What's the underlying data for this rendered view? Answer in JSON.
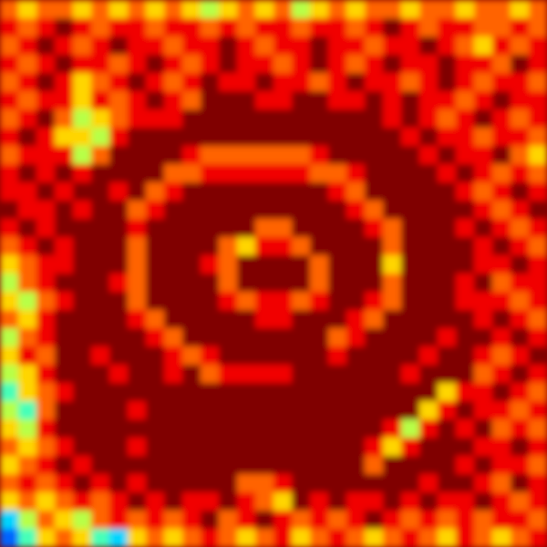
{
  "chart_data": {
    "type": "heatmap",
    "tick_labels": false,
    "zlim": [
      0,
      9
    ],
    "cells": [
      [
        7,
        6,
        7,
        7,
        6,
        7,
        6,
        7,
        6,
        7,
        6,
        5,
        6,
        7,
        6,
        7,
        5,
        6,
        7,
        6,
        7,
        7,
        6,
        7,
        7,
        6,
        7,
        7,
        6,
        7
      ],
      [
        8,
        7,
        8,
        9,
        8,
        7,
        8,
        8,
        7,
        8,
        8,
        7,
        8,
        7,
        8,
        8,
        7,
        8,
        8,
        7,
        8,
        9,
        8,
        7,
        8,
        8,
        7,
        7,
        8,
        7
      ],
      [
        7,
        8,
        9,
        8,
        7,
        8,
        9,
        8,
        8,
        7,
        8,
        8,
        9,
        8,
        7,
        8,
        8,
        9,
        8,
        8,
        7,
        8,
        8,
        9,
        8,
        7,
        6,
        8,
        7,
        8
      ],
      [
        8,
        7,
        8,
        9,
        8,
        8,
        7,
        8,
        9,
        8,
        7,
        8,
        9,
        8,
        8,
        7,
        8,
        9,
        8,
        7,
        8,
        9,
        8,
        8,
        9,
        8,
        8,
        7,
        9,
        8
      ],
      [
        7,
        8,
        9,
        8,
        6,
        7,
        8,
        9,
        8,
        7,
        8,
        9,
        8,
        8,
        9,
        8,
        8,
        7,
        8,
        9,
        8,
        8,
        7,
        8,
        9,
        8,
        7,
        8,
        8,
        7
      ],
      [
        8,
        7,
        8,
        8,
        6,
        8,
        7,
        8,
        9,
        8,
        7,
        9,
        9,
        9,
        8,
        8,
        9,
        9,
        8,
        8,
        9,
        8,
        9,
        8,
        8,
        7,
        8,
        9,
        8,
        8
      ],
      [
        7,
        8,
        9,
        7,
        5,
        6,
        7,
        8,
        8,
        8,
        9,
        9,
        9,
        9,
        9,
        9,
        9,
        9,
        9,
        9,
        9,
        8,
        9,
        8,
        7,
        8,
        9,
        8,
        7,
        8
      ],
      [
        8,
        9,
        8,
        6,
        6,
        5,
        8,
        9,
        9,
        9,
        9,
        9,
        9,
        9,
        9,
        9,
        9,
        9,
        9,
        9,
        9,
        9,
        8,
        9,
        8,
        8,
        7,
        8,
        8,
        7
      ],
      [
        7,
        8,
        8,
        8,
        5,
        7,
        9,
        9,
        9,
        9,
        8,
        7,
        7,
        7,
        7,
        7,
        7,
        8,
        9,
        9,
        9,
        9,
        9,
        8,
        9,
        8,
        8,
        9,
        7,
        6
      ],
      [
        8,
        9,
        8,
        9,
        8,
        9,
        9,
        9,
        9,
        7,
        7,
        8,
        8,
        8,
        8,
        8,
        8,
        7,
        7,
        8,
        9,
        9,
        9,
        9,
        8,
        9,
        8,
        7,
        8,
        7
      ],
      [
        8,
        8,
        9,
        8,
        9,
        9,
        8,
        9,
        7,
        8,
        9,
        9,
        9,
        9,
        9,
        9,
        9,
        9,
        8,
        7,
        9,
        9,
        9,
        9,
        9,
        8,
        7,
        8,
        9,
        8
      ],
      [
        9,
        8,
        8,
        9,
        8,
        9,
        9,
        7,
        8,
        9,
        9,
        9,
        9,
        9,
        9,
        9,
        9,
        9,
        9,
        8,
        7,
        9,
        9,
        9,
        9,
        9,
        8,
        7,
        8,
        9
      ],
      [
        8,
        9,
        8,
        9,
        9,
        9,
        9,
        8,
        9,
        9,
        9,
        9,
        9,
        9,
        7,
        7,
        9,
        9,
        9,
        9,
        8,
        7,
        9,
        9,
        9,
        8,
        9,
        8,
        7,
        8
      ],
      [
        7,
        8,
        9,
        8,
        9,
        9,
        9,
        7,
        9,
        9,
        9,
        9,
        7,
        6,
        8,
        8,
        7,
        9,
        9,
        9,
        9,
        7,
        9,
        9,
        9,
        9,
        8,
        9,
        8,
        7
      ],
      [
        6,
        7,
        8,
        8,
        9,
        9,
        9,
        7,
        9,
        9,
        9,
        8,
        7,
        9,
        9,
        9,
        9,
        7,
        9,
        9,
        9,
        6,
        9,
        9,
        9,
        9,
        8,
        8,
        9,
        8
      ],
      [
        5,
        7,
        8,
        9,
        9,
        9,
        8,
        7,
        9,
        9,
        9,
        9,
        7,
        9,
        9,
        9,
        9,
        7,
        9,
        9,
        9,
        7,
        9,
        9,
        9,
        8,
        9,
        7,
        8,
        8
      ],
      [
        6,
        5,
        7,
        8,
        9,
        9,
        9,
        7,
        9,
        9,
        9,
        9,
        8,
        7,
        8,
        8,
        7,
        8,
        9,
        9,
        8,
        7,
        9,
        9,
        9,
        8,
        8,
        8,
        7,
        8
      ],
      [
        7,
        6,
        8,
        9,
        9,
        9,
        9,
        8,
        7,
        9,
        9,
        9,
        9,
        9,
        8,
        8,
        9,
        9,
        9,
        8,
        7,
        9,
        9,
        9,
        9,
        9,
        8,
        9,
        8,
        7
      ],
      [
        5,
        7,
        8,
        9,
        9,
        9,
        9,
        9,
        8,
        7,
        9,
        9,
        9,
        9,
        9,
        9,
        9,
        9,
        7,
        8,
        9,
        9,
        9,
        9,
        8,
        9,
        9,
        8,
        9,
        8
      ],
      [
        6,
        8,
        7,
        9,
        9,
        8,
        9,
        9,
        9,
        8,
        7,
        8,
        9,
        9,
        9,
        9,
        9,
        9,
        8,
        9,
        9,
        9,
        9,
        8,
        9,
        9,
        8,
        7,
        8,
        9
      ],
      [
        5,
        6,
        8,
        9,
        9,
        9,
        8,
        9,
        9,
        8,
        9,
        7,
        8,
        8,
        8,
        8,
        9,
        9,
        9,
        9,
        9,
        9,
        8,
        9,
        9,
        9,
        7,
        8,
        9,
        8
      ],
      [
        4,
        6,
        7,
        8,
        9,
        9,
        9,
        9,
        9,
        9,
        9,
        9,
        9,
        9,
        9,
        9,
        9,
        9,
        9,
        9,
        9,
        9,
        9,
        9,
        6,
        8,
        8,
        9,
        8,
        7
      ],
      [
        5,
        4,
        7,
        9,
        9,
        9,
        9,
        8,
        9,
        9,
        9,
        9,
        9,
        9,
        9,
        9,
        9,
        9,
        9,
        9,
        9,
        9,
        9,
        6,
        8,
        9,
        8,
        8,
        7,
        8
      ],
      [
        6,
        5,
        8,
        9,
        9,
        9,
        9,
        9,
        9,
        9,
        9,
        9,
        9,
        9,
        9,
        9,
        9,
        9,
        9,
        9,
        9,
        8,
        5,
        8,
        9,
        8,
        9,
        7,
        8,
        7
      ],
      [
        7,
        6,
        7,
        8,
        9,
        9,
        9,
        8,
        9,
        9,
        9,
        9,
        9,
        9,
        9,
        9,
        9,
        9,
        9,
        9,
        8,
        6,
        8,
        9,
        9,
        9,
        8,
        8,
        9,
        8
      ],
      [
        6,
        7,
        8,
        9,
        8,
        9,
        9,
        9,
        9,
        9,
        9,
        9,
        9,
        9,
        9,
        9,
        9,
        9,
        9,
        9,
        7,
        9,
        9,
        9,
        9,
        8,
        9,
        8,
        8,
        7
      ],
      [
        7,
        8,
        7,
        8,
        9,
        8,
        9,
        8,
        9,
        9,
        9,
        9,
        9,
        7,
        7,
        8,
        9,
        9,
        9,
        9,
        9,
        9,
        9,
        8,
        9,
        9,
        8,
        7,
        9,
        8
      ],
      [
        6,
        7,
        6,
        7,
        8,
        7,
        8,
        9,
        8,
        9,
        8,
        8,
        9,
        8,
        7,
        6,
        9,
        8,
        9,
        8,
        8,
        9,
        8,
        9,
        8,
        8,
        9,
        8,
        7,
        8
      ],
      [
        3,
        5,
        7,
        6,
        5,
        7,
        8,
        7,
        8,
        7,
        8,
        9,
        7,
        8,
        9,
        8,
        7,
        8,
        7,
        8,
        9,
        8,
        7,
        8,
        7,
        8,
        7,
        8,
        8,
        7
      ],
      [
        2,
        4,
        6,
        7,
        6,
        4,
        3,
        6,
        7,
        6,
        7,
        8,
        7,
        6,
        7,
        8,
        6,
        7,
        8,
        7,
        6,
        7,
        8,
        7,
        6,
        8,
        7,
        6,
        7,
        8
      ]
    ]
  }
}
